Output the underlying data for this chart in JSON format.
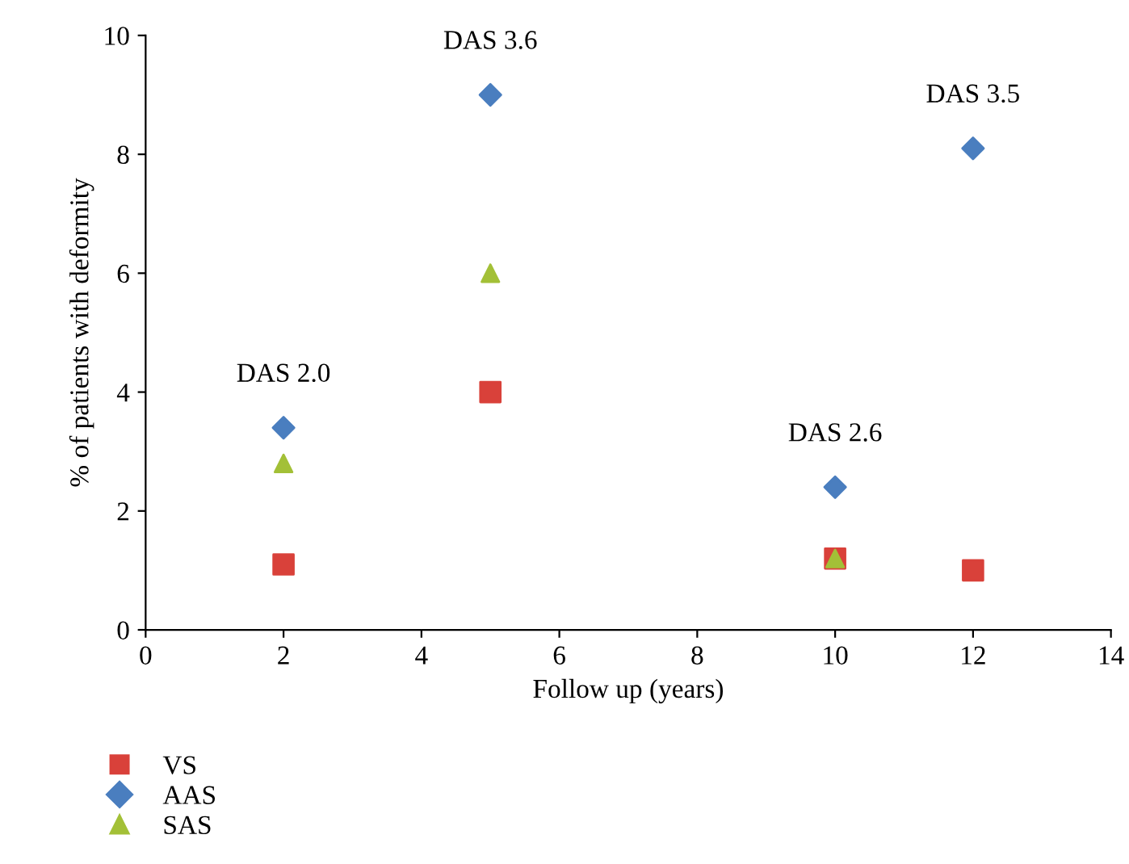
{
  "chart_data": {
    "type": "scatter",
    "xlabel": "Follow up (years)",
    "ylabel": "% of patients with deformity",
    "xlim": [
      0,
      14
    ],
    "xticks": [
      0,
      2,
      4,
      6,
      8,
      10,
      12,
      14
    ],
    "ylim": [
      0,
      10
    ],
    "yticks": [
      0,
      2,
      4,
      6,
      8,
      10
    ],
    "grid": false,
    "legend": "bottom left",
    "x": [
      2,
      5,
      10,
      12
    ],
    "series": [
      {
        "name": "VS",
        "color": "#d9413a",
        "marker": "square",
        "values": [
          1.1,
          4.0,
          1.2,
          1.0
        ]
      },
      {
        "name": "AAS",
        "color": "#4a7ebf",
        "marker": "diamond",
        "values": [
          3.4,
          9.0,
          2.4,
          8.1
        ]
      },
      {
        "name": "SAS",
        "color": "#a3c037",
        "marker": "triangle",
        "values": [
          2.8,
          6.0,
          1.2,
          null
        ]
      }
    ],
    "annotations": [
      {
        "text": "DAS 2.0",
        "x": 2,
        "y": 3.4
      },
      {
        "text": "DAS 3.6",
        "x": 5,
        "y": 9.0
      },
      {
        "text": "DAS 2.6",
        "x": 10,
        "y": 2.4
      },
      {
        "text": "DAS 3.5",
        "x": 12,
        "y": 8.1
      }
    ]
  }
}
